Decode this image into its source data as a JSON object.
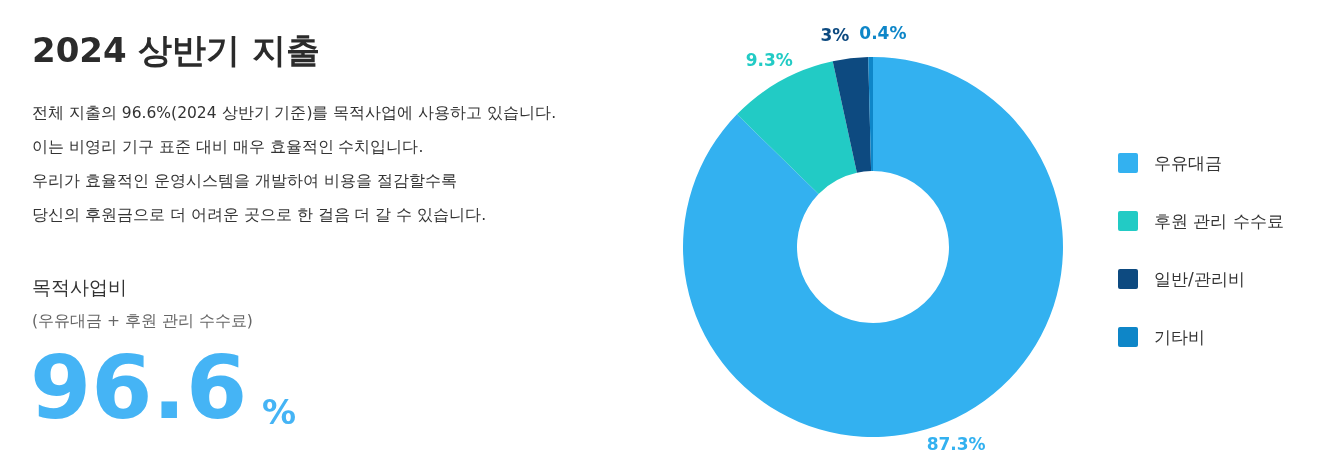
{
  "chart_data": {
    "type": "donut",
    "title": "2024 상반기 지출",
    "categories": [
      "우유대금",
      "후원 관리 수수료",
      "일반/관리비",
      "기타비"
    ],
    "values": [
      87.3,
      9.3,
      3,
      0.4
    ],
    "colors": [
      "#33b1f0",
      "#22cbc5",
      "#0d4a80",
      "#0e86c8"
    ],
    "value_labels": [
      "87.3%",
      "9.3%",
      "3%",
      "0.4%"
    ],
    "legend": "right",
    "annotations": [
      "전체 지출의 96.6%(2024 상반기 기준)를 목적사업에 사용하고 있습니다.",
      "이는 비영리 기구 표준 대비 매우 효율적인 수치입니다.",
      "우리가 효율적인 운영시스템을 개발하여 비용을 절감할수록",
      "당신의 후원금으로 더 어려운 곳으로 한 걸음 더 갈 수 있습니다.",
      "목적사업비",
      "(우유대금 + 후원 관리 수수료)",
      "96.6",
      "%"
    ]
  }
}
